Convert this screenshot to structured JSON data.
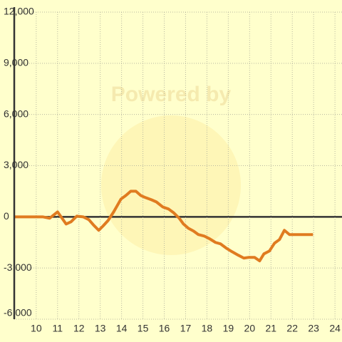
{
  "chart_data": {
    "type": "line",
    "watermark": "Powered by",
    "x": [
      9,
      10,
      10.3,
      10.63,
      11,
      11.4,
      11.63,
      11.9,
      12.2,
      12.47,
      12.7,
      12.93,
      13.13,
      13.37,
      13.63,
      13.97,
      14.2,
      14.43,
      14.67,
      14.9,
      15.13,
      15.4,
      15.63,
      15.93,
      16.2,
      16.43,
      16.7,
      16.9,
      17.13,
      17.37,
      17.6,
      17.87,
      18.13,
      18.4,
      18.63,
      18.9,
      19.17,
      19.47,
      19.73,
      19.97,
      20.23,
      20.47,
      20.67,
      20.93,
      21.17,
      21.4,
      21.63,
      21.87,
      22.13,
      22.97
    ],
    "series": [
      {
        "color": "#e07b20",
        "values": [
          0,
          0,
          0,
          -80,
          290,
          -420,
          -290,
          40,
          0,
          -170,
          -500,
          -790,
          -540,
          -210,
          290,
          1040,
          1250,
          1500,
          1500,
          1250,
          1125,
          1000,
          875,
          580,
          460,
          250,
          -80,
          -420,
          -670,
          -830,
          -1040,
          -1125,
          -1290,
          -1500,
          -1580,
          -1830,
          -2040,
          -2250,
          -2420,
          -2375,
          -2375,
          -2580,
          -2170,
          -2000,
          -1540,
          -1330,
          -790,
          -1040,
          -1040,
          -1040
        ]
      }
    ],
    "xlim": [
      8.97,
      24.33
    ],
    "xticks": [
      10,
      11,
      12,
      13,
      14,
      15,
      16,
      17,
      18,
      19,
      20,
      21,
      22,
      23,
      24
    ],
    "ylim": [
      -6000,
      12000
    ],
    "yticks": [
      {
        "value": -6000,
        "label": "-6,000"
      },
      {
        "value": -3000,
        "label": "-3,000"
      },
      0,
      {
        "value": 3000,
        "label": "3,000"
      },
      {
        "value": 6000,
        "label": "6,000"
      },
      {
        "value": 9000,
        "label": "9,000"
      },
      {
        "value": 12000,
        "label": "12,000"
      }
    ],
    "grid": true
  }
}
